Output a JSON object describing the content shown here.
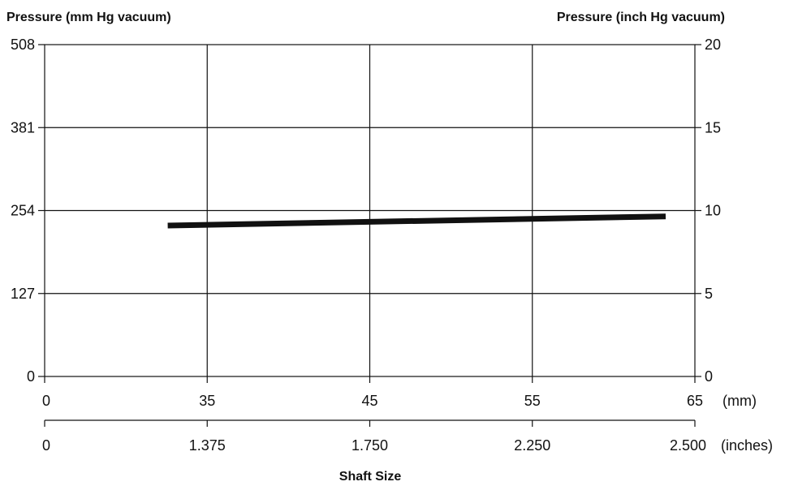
{
  "chart_data": {
    "type": "line",
    "left_axis": {
      "title": "Pressure (mm Hg vacuum)",
      "ticks": [
        "0",
        "127",
        "254",
        "381",
        "508"
      ],
      "values": [
        0,
        127,
        254,
        381,
        508
      ],
      "ylim": [
        0,
        508
      ]
    },
    "right_axis": {
      "title": "Pressure (inch Hg vacuum)",
      "ticks": [
        "0",
        "5",
        "10",
        "15",
        "20"
      ],
      "values": [
        0,
        5,
        10,
        15,
        20
      ],
      "ylim": [
        0,
        20
      ]
    },
    "x_axis_mm": {
      "ticks": [
        "0",
        "35",
        "45",
        "55",
        "65"
      ],
      "unit": "(mm)"
    },
    "x_axis_inches": {
      "ticks": [
        "0",
        "1.375",
        "1.750",
        "2.250",
        "2.500"
      ],
      "unit": "(inches)"
    },
    "xlabel": "Shaft Size",
    "grid": true,
    "series": [
      {
        "color": "#111111",
        "points": [
          {
            "x_mm": 26.5,
            "y_mm_hg": 231
          },
          {
            "x_mm": 63.2,
            "y_mm_hg": 245
          }
        ]
      }
    ]
  }
}
